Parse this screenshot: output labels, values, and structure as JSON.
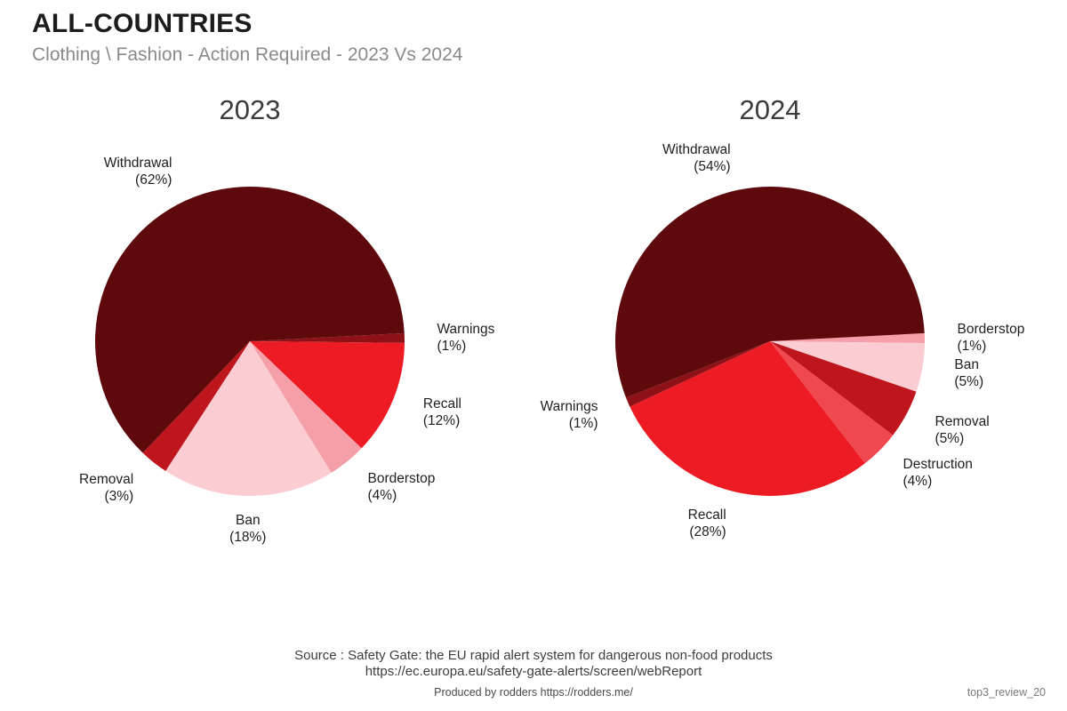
{
  "header": {
    "title": "ALL-COUNTRIES",
    "subtitle": "Clothing \\ Fashion - Action Required - 2023 Vs 2024"
  },
  "chart_data": [
    {
      "type": "pie",
      "title": "2023",
      "unit": "percent",
      "direction": "clockwise",
      "start_angle_deg": -3,
      "label_format": "Name (value%)",
      "slices": [
        {
          "label": "Warnings",
          "value": 1,
          "color": "#8d1117"
        },
        {
          "label": "Recall",
          "value": 12,
          "color": "#ed1c24"
        },
        {
          "label": "Borderstop",
          "value": 4,
          "color": "#f59fa8"
        },
        {
          "label": "Ban",
          "value": 18,
          "color": "#fbcdd3"
        },
        {
          "label": "Removal",
          "value": 3,
          "color": "#bf151c"
        },
        {
          "label": "Withdrawal",
          "value": 62,
          "color": "#5e0a0d"
        }
      ]
    },
    {
      "type": "pie",
      "title": "2024",
      "unit": "percent",
      "direction": "clockwise",
      "start_angle_deg": -3,
      "label_format": "Name (value%)",
      "slices": [
        {
          "label": "Borderstop",
          "value": 1,
          "color": "#f59fa8"
        },
        {
          "label": "Ban",
          "value": 5,
          "color": "#fbcdd3"
        },
        {
          "label": "Removal",
          "value": 5,
          "color": "#bf151c"
        },
        {
          "label": "Destruction",
          "value": 4,
          "color": "#f0484f"
        },
        {
          "label": "Recall",
          "value": 28,
          "color": "#ed1c24"
        },
        {
          "label": "Warnings",
          "value": 1,
          "color": "#8d1117"
        },
        {
          "label": "Withdrawal",
          "value": 54,
          "color": "#5e0a0d"
        }
      ]
    }
  ],
  "footer": {
    "source_line1": "Source : Safety Gate: the EU rapid alert system for dangerous non-food products",
    "source_line2": "https://ec.europa.eu/safety-gate-alerts/screen/webReport",
    "produced_by": "Produced by rodders https://rodders.me/",
    "watermark": "top3_review_20"
  }
}
